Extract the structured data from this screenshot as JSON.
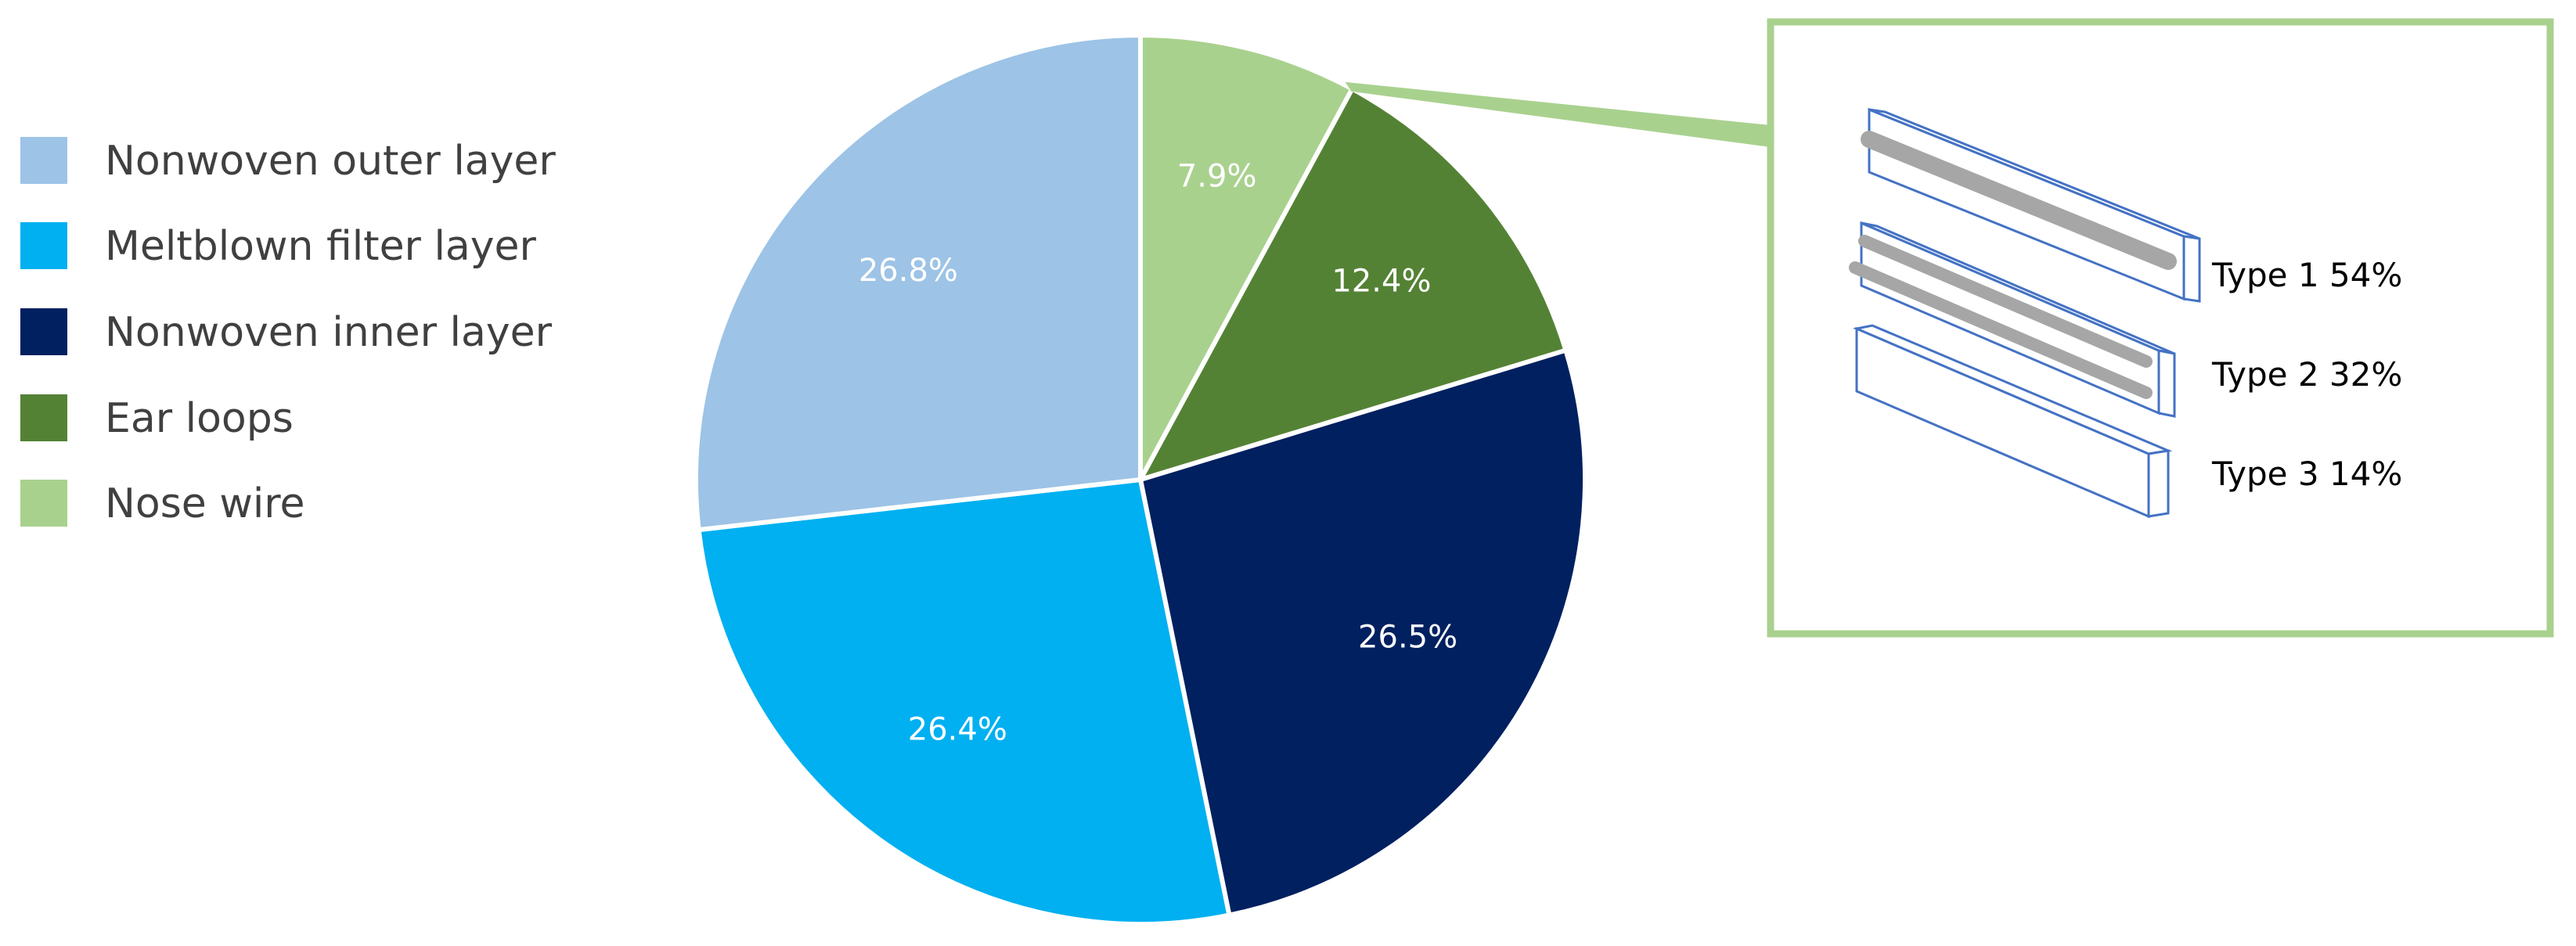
{
  "chart_data": {
    "type": "pie",
    "slices": [
      {
        "label": "Nose wire",
        "value": 7.9,
        "display": "7.9%",
        "color": "#a9d18e"
      },
      {
        "label": "Ear loops",
        "value": 12.4,
        "display": "12.4%",
        "color": "#548235"
      },
      {
        "label": "Nonwoven inner layer",
        "value": 26.5,
        "display": "26.5%",
        "color": "#002060"
      },
      {
        "label": "Meltblown filter layer",
        "value": 26.4,
        "display": "26.4%",
        "color": "#00b0f0"
      },
      {
        "label": "Nonwoven outer layer",
        "value": 26.8,
        "display": "26.8%",
        "color": "#9dc3e6"
      }
    ],
    "legend": {
      "placement": "left",
      "entries": [
        {
          "label": "Nonwoven outer layer",
          "color": "#9dc3e6"
        },
        {
          "label": "Meltblown filter layer",
          "color": "#00b0f0"
        },
        {
          "label": "Nonwoven inner layer",
          "color": "#002060"
        },
        {
          "label": "Ear loops",
          "color": "#548235"
        },
        {
          "label": "Nose wire",
          "color": "#a9d18e"
        }
      ]
    },
    "callout": {
      "source_slice": "Nose wire",
      "border_color": "#a9d18e",
      "items": [
        {
          "label": "Type 1 54%",
          "value": 54
        },
        {
          "label": "Type 2 32%",
          "value": 32
        },
        {
          "label": "Type 3 14%",
          "value": 14
        }
      ]
    }
  }
}
